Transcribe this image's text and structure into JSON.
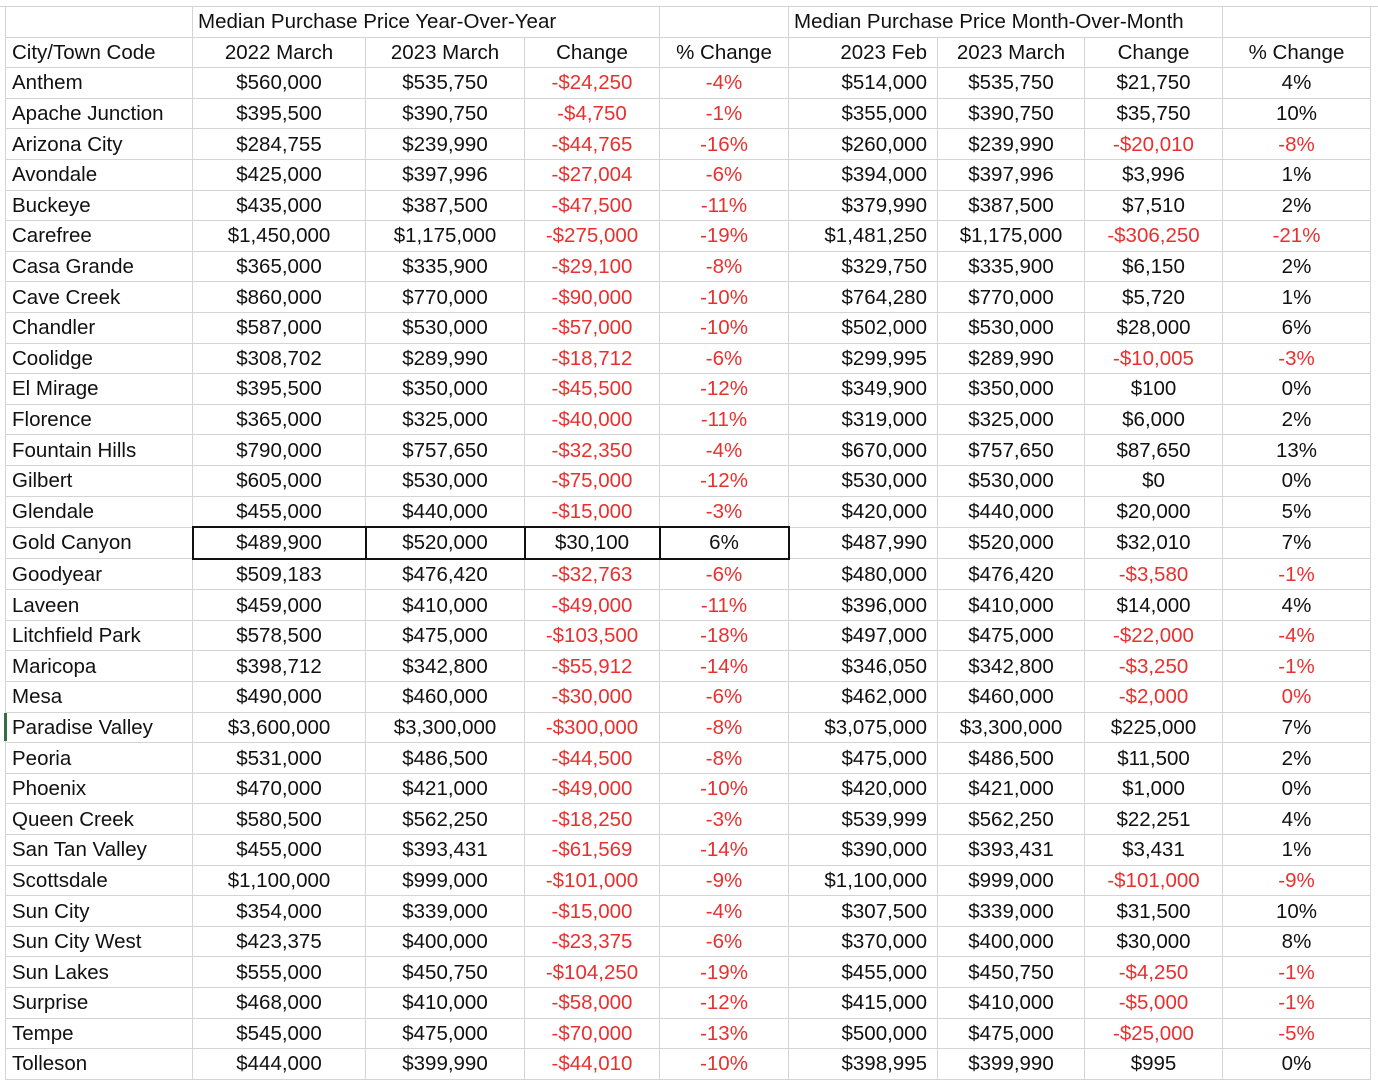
{
  "group_headers": {
    "yoy": "Median Purchase Price Year-Over-Year",
    "mom": "Median Purchase Price Month-Over-Month"
  },
  "columns": [
    "City/Town Code",
    "2022 March",
    "2023 March",
    "Change",
    "% Change",
    "2023 Feb",
    "2023 March",
    "Change",
    "% Change"
  ],
  "colors": {
    "negative": "#e8312f",
    "grid": "#d4d4d4"
  },
  "selected_cell_row": "Gold Canyon",
  "rows": [
    {
      "cells": [
        "Anthem",
        "$560,000",
        "$535,750",
        "-$24,250",
        "-4%",
        "$514,000",
        "$535,750",
        "$21,750",
        "4%"
      ]
    },
    {
      "cells": [
        "Apache Junction",
        "$395,500",
        "$390,750",
        "-$4,750",
        "-1%",
        "$355,000",
        "$390,750",
        "$35,750",
        "10%"
      ]
    },
    {
      "cells": [
        "Arizona City",
        "$284,755",
        "$239,990",
        "-$44,765",
        "-16%",
        "$260,000",
        "$239,990",
        "-$20,010",
        "-8%"
      ]
    },
    {
      "cells": [
        "Avondale",
        "$425,000",
        "$397,996",
        "-$27,004",
        "-6%",
        "$394,000",
        "$397,996",
        "$3,996",
        "1%"
      ]
    },
    {
      "cells": [
        "Buckeye",
        "$435,000",
        "$387,500",
        "-$47,500",
        "-11%",
        "$379,990",
        "$387,500",
        "$7,510",
        "2%"
      ]
    },
    {
      "cells": [
        "Carefree",
        "$1,450,000",
        "$1,175,000",
        "-$275,000",
        "-19%",
        "$1,481,250",
        "$1,175,000",
        "-$306,250",
        "-21%"
      ]
    },
    {
      "cells": [
        "Casa Grande",
        "$365,000",
        "$335,900",
        "-$29,100",
        "-8%",
        "$329,750",
        "$335,900",
        "$6,150",
        "2%"
      ]
    },
    {
      "cells": [
        "Cave Creek",
        "$860,000",
        "$770,000",
        "-$90,000",
        "-10%",
        "$764,280",
        "$770,000",
        "$5,720",
        "1%"
      ]
    },
    {
      "cells": [
        "Chandler",
        "$587,000",
        "$530,000",
        "-$57,000",
        "-10%",
        "$502,000",
        "$530,000",
        "$28,000",
        "6%"
      ]
    },
    {
      "cells": [
        "Coolidge",
        "$308,702",
        "$289,990",
        "-$18,712",
        "-6%",
        "$299,995",
        "$289,990",
        "-$10,005",
        "-3%"
      ]
    },
    {
      "cells": [
        "El Mirage",
        "$395,500",
        "$350,000",
        "-$45,500",
        "-12%",
        "$349,900",
        "$350,000",
        "$100",
        "0%"
      ]
    },
    {
      "cells": [
        "Florence",
        "$365,000",
        "$325,000",
        "-$40,000",
        "-11%",
        "$319,000",
        "$325,000",
        "$6,000",
        "2%"
      ]
    },
    {
      "cells": [
        "Fountain Hills",
        "$790,000",
        "$757,650",
        "-$32,350",
        "-4%",
        "$670,000",
        "$757,650",
        "$87,650",
        "13%"
      ]
    },
    {
      "cells": [
        "Gilbert",
        "$605,000",
        "$530,000",
        "-$75,000",
        "-12%",
        "$530,000",
        "$530,000",
        "$0",
        "0%"
      ]
    },
    {
      "cells": [
        "Glendale",
        "$455,000",
        "$440,000",
        "-$15,000",
        "-3%",
        "$420,000",
        "$440,000",
        "$20,000",
        "5%"
      ]
    },
    {
      "cells": [
        "Gold Canyon",
        "$489,900",
        "$520,000",
        "$30,100",
        "6%",
        "$487,990",
        "$520,000",
        "$32,010",
        "7%"
      ]
    },
    {
      "cells": [
        "Goodyear",
        "$509,183",
        "$476,420",
        "-$32,763",
        "-6%",
        "$480,000",
        "$476,420",
        "-$3,580",
        "-1%"
      ]
    },
    {
      "cells": [
        "Laveen",
        "$459,000",
        "$410,000",
        "-$49,000",
        "-11%",
        "$396,000",
        "$410,000",
        "$14,000",
        "4%"
      ]
    },
    {
      "cells": [
        "Litchfield Park",
        "$578,500",
        "$475,000",
        "-$103,500",
        "-18%",
        "$497,000",
        "$475,000",
        "-$22,000",
        "-4%"
      ]
    },
    {
      "cells": [
        "Maricopa",
        "$398,712",
        "$342,800",
        "-$55,912",
        "-14%",
        "$346,050",
        "$342,800",
        "-$3,250",
        "-1%"
      ]
    },
    {
      "cells": [
        "Mesa",
        "$490,000",
        "$460,000",
        "-$30,000",
        "-6%",
        "$462,000",
        "$460,000",
        "-$2,000",
        "0%"
      ],
      "red_cols": [
        8
      ]
    },
    {
      "cells": [
        "Paradise Valley",
        "$3,600,000",
        "$3,300,000",
        "-$300,000",
        "-8%",
        "$3,075,000",
        "$3,300,000",
        "$225,000",
        "7%"
      ]
    },
    {
      "cells": [
        "Peoria",
        "$531,000",
        "$486,500",
        "-$44,500",
        "-8%",
        "$475,000",
        "$486,500",
        "$11,500",
        "2%"
      ]
    },
    {
      "cells": [
        "Phoenix",
        "$470,000",
        "$421,000",
        "-$49,000",
        "-10%",
        "$420,000",
        "$421,000",
        "$1,000",
        "0%"
      ]
    },
    {
      "cells": [
        "Queen Creek",
        "$580,500",
        "$562,250",
        "-$18,250",
        "-3%",
        "$539,999",
        "$562,250",
        "$22,251",
        "4%"
      ]
    },
    {
      "cells": [
        "San Tan Valley",
        "$455,000",
        "$393,431",
        "-$61,569",
        "-14%",
        "$390,000",
        "$393,431",
        "$3,431",
        "1%"
      ]
    },
    {
      "cells": [
        "Scottsdale",
        "$1,100,000",
        "$999,000",
        "-$101,000",
        "-9%",
        "$1,100,000",
        "$999,000",
        "-$101,000",
        "-9%"
      ]
    },
    {
      "cells": [
        "Sun City",
        "$354,000",
        "$339,000",
        "-$15,000",
        "-4%",
        "$307,500",
        "$339,000",
        "$31,500",
        "10%"
      ]
    },
    {
      "cells": [
        "Sun City West",
        "$423,375",
        "$400,000",
        "-$23,375",
        "-6%",
        "$370,000",
        "$400,000",
        "$30,000",
        "8%"
      ]
    },
    {
      "cells": [
        "Sun Lakes",
        "$555,000",
        "$450,750",
        "-$104,250",
        "-19%",
        "$455,000",
        "$450,750",
        "-$4,250",
        "-1%"
      ]
    },
    {
      "cells": [
        "Surprise",
        "$468,000",
        "$410,000",
        "-$58,000",
        "-12%",
        "$415,000",
        "$410,000",
        "-$5,000",
        "-1%"
      ]
    },
    {
      "cells": [
        "Tempe",
        "$545,000",
        "$475,000",
        "-$70,000",
        "-13%",
        "$500,000",
        "$475,000",
        "-$25,000",
        "-5%"
      ]
    },
    {
      "cells": [
        "Tolleson",
        "$444,000",
        "$399,990",
        "-$44,010",
        "-10%",
        "$398,995",
        "$399,990",
        "$995",
        "0%"
      ]
    }
  ]
}
